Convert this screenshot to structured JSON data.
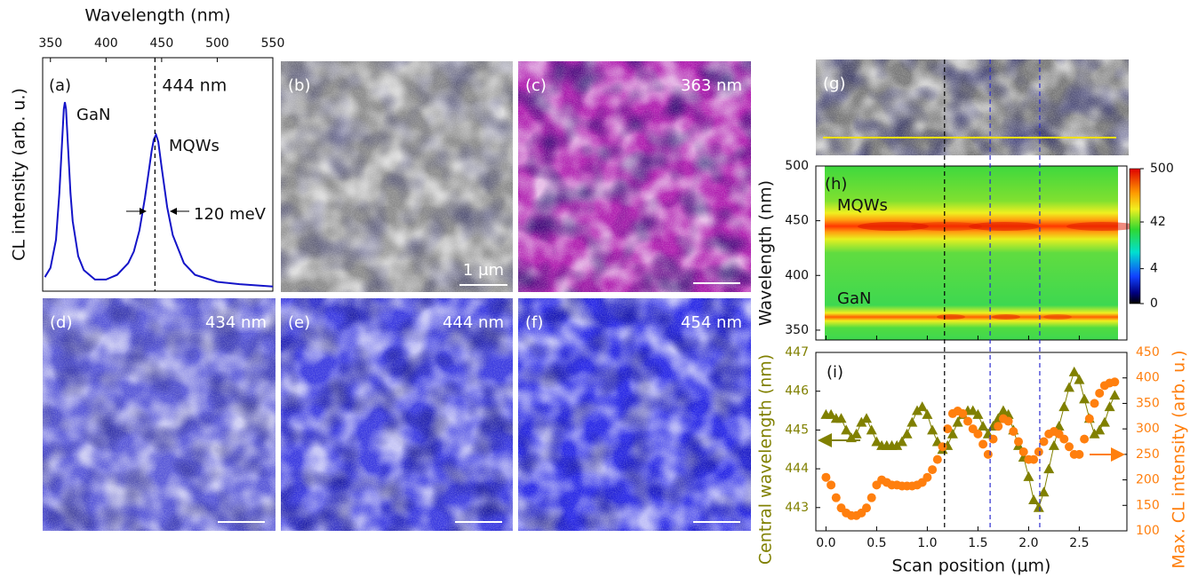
{
  "chart_data": [
    {
      "type": "line",
      "panel": "(a)",
      "xlabel": "Wavelength (nm)",
      "ylabel": "CL intensity (arb. u.)",
      "xlim": [
        343,
        550
      ],
      "xticks": [
        350,
        400,
        450,
        500,
        550
      ],
      "ylim": [
        0,
        1
      ],
      "x": [
        345,
        350,
        355,
        358,
        360,
        362,
        363,
        364,
        366,
        368,
        370,
        375,
        380,
        390,
        400,
        410,
        420,
        425,
        430,
        435,
        438,
        441,
        443,
        445,
        447,
        450,
        455,
        460,
        470,
        480,
        500,
        520,
        550
      ],
      "values": [
        0.06,
        0.1,
        0.22,
        0.42,
        0.6,
        0.78,
        0.81,
        0.78,
        0.6,
        0.42,
        0.3,
        0.15,
        0.09,
        0.05,
        0.05,
        0.07,
        0.12,
        0.17,
        0.26,
        0.4,
        0.5,
        0.6,
        0.65,
        0.67,
        0.64,
        0.53,
        0.36,
        0.24,
        0.12,
        0.07,
        0.04,
        0.03,
        0.02
      ],
      "color": "#1414c8",
      "marker_x": 444,
      "marker_label": "444 nm",
      "annotations": [
        "GaN",
        "MQWs",
        "120 meV"
      ]
    },
    {
      "type": "contour",
      "panel": "(h)",
      "ylabel": "Wavelength (nm)",
      "ylim": [
        341,
        500
      ],
      "yticks": [
        350,
        400,
        450,
        500
      ],
      "colorbar_ticks": [
        0,
        4,
        42,
        500
      ],
      "annotations": [
        "MQWs",
        "GaN"
      ]
    },
    {
      "type": "scatter",
      "panel": "(i)",
      "xlabel": "Scan position (μm)",
      "ylabel": "Central wavelength (nm)",
      "y2label": "Max. CL intensity (arb. u.)",
      "xlim": [
        -0.1,
        2.97
      ],
      "xticks": [
        {
          "value": 0,
          "label": "0.0"
        },
        {
          "value": 0.5,
          "label": "0.5"
        },
        {
          "value": 1,
          "label": "1.0"
        },
        {
          "value": 1.5,
          "label": "1.5"
        },
        {
          "value": 2,
          "label": "2.0"
        },
        {
          "value": 2.5,
          "label": "2.5"
        }
      ],
      "ylim": [
        442.4,
        447
      ],
      "yticks": [
        443,
        444,
        445,
        446,
        447
      ],
      "y2lim": [
        100,
        450
      ],
      "y2ticks": [
        100,
        150,
        200,
        250,
        300,
        350,
        400,
        450
      ],
      "x": [
        0,
        0.05,
        0.1,
        0.15,
        0.2,
        0.25,
        0.3,
        0.35,
        0.4,
        0.45,
        0.5,
        0.55,
        0.6,
        0.65,
        0.7,
        0.75,
        0.8,
        0.85,
        0.9,
        0.95,
        1,
        1.05,
        1.1,
        1.15,
        1.2,
        1.25,
        1.3,
        1.35,
        1.4,
        1.45,
        1.5,
        1.55,
        1.6,
        1.65,
        1.7,
        1.75,
        1.8,
        1.85,
        1.9,
        1.95,
        2,
        2.05,
        2.1,
        2.15,
        2.2,
        2.25,
        2.3,
        2.35,
        2.4,
        2.45,
        2.5,
        2.55,
        2.6,
        2.65,
        2.7,
        2.75,
        2.8,
        2.85
      ],
      "series": [
        {
          "color": "#808000",
          "marker": "triangle",
          "values": [
            445.4,
            445.4,
            445.3,
            445.3,
            445.0,
            444.8,
            444.9,
            445.2,
            445.3,
            445.0,
            444.7,
            444.6,
            444.6,
            444.6,
            444.6,
            444.7,
            444.9,
            445.2,
            445.5,
            445.6,
            445.4,
            445.0,
            444.7,
            444.5,
            444.6,
            444.9,
            445.2,
            445.4,
            445.5,
            445.5,
            445.4,
            445.1,
            444.9,
            445.1,
            445.3,
            445.5,
            445.4,
            445.0,
            444.6,
            444.3,
            443.8,
            443.2,
            443.0,
            443.4,
            444.0,
            444.6,
            445.1,
            445.6,
            446.1,
            446.5,
            446.3,
            445.8,
            445.3,
            444.9,
            445.0,
            445.2,
            445.6,
            445.9
          ]
        },
        {
          "color": "#ff7f0e",
          "marker": "circle",
          "axis": "y2",
          "values": [
            205,
            190,
            165,
            145,
            135,
            130,
            130,
            135,
            145,
            165,
            190,
            200,
            195,
            190,
            190,
            188,
            188,
            188,
            190,
            195,
            205,
            220,
            240,
            265,
            300,
            330,
            335,
            330,
            315,
            300,
            290,
            270,
            250,
            280,
            305,
            320,
            315,
            295,
            275,
            255,
            240,
            240,
            255,
            275,
            290,
            295,
            290,
            280,
            265,
            250,
            250,
            280,
            320,
            350,
            370,
            385,
            390,
            392
          ]
        }
      ],
      "marker_x": [
        1.17,
        1.62,
        2.11
      ],
      "marker_colors": [
        "#000000",
        "#2a2ad0",
        "#2a2ad0"
      ]
    }
  ],
  "images": [
    {
      "panel": "(b)",
      "text": "1 μm"
    },
    {
      "panel": "(c)",
      "text": "363 nm"
    },
    {
      "panel": "(d)",
      "text": "434 nm"
    },
    {
      "panel": "(e)",
      "text": "444 nm"
    },
    {
      "panel": "(f)",
      "text": "454 nm"
    },
    {
      "panel": "(g)"
    }
  ]
}
